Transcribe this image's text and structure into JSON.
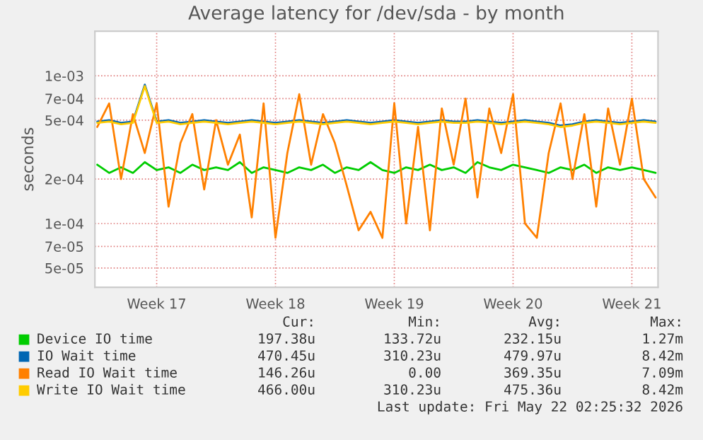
{
  "chart_data": {
    "type": "line",
    "title": "Average latency for /dev/sda - by month",
    "ylabel": "seconds",
    "categories": [
      null,
      null,
      null,
      null,
      null,
      "Week 17",
      null,
      null,
      null,
      null,
      null,
      null,
      null,
      null,
      null,
      "Week 18",
      null,
      null,
      null,
      null,
      null,
      null,
      null,
      null,
      null,
      "Week 19",
      null,
      null,
      null,
      null,
      null,
      null,
      null,
      null,
      null,
      "Week 20",
      null,
      null,
      null,
      null,
      null,
      null,
      null,
      null,
      null,
      "Week 21",
      null,
      null
    ],
    "series": [
      {
        "name": "Device IO time",
        "color": "#00cc00",
        "values": [
          0.00025,
          0.00022,
          0.00024,
          0.00022,
          0.00026,
          0.00023,
          0.00024,
          0.00022,
          0.00025,
          0.00023,
          0.00024,
          0.00023,
          0.00026,
          0.00022,
          0.00024,
          0.00023,
          0.00022,
          0.00024,
          0.00023,
          0.00025,
          0.00022,
          0.00024,
          0.00023,
          0.00026,
          0.00023,
          0.00022,
          0.00024,
          0.00023,
          0.00025,
          0.00023,
          0.00024,
          0.00022,
          0.00026,
          0.00024,
          0.00023,
          0.00025,
          0.00024,
          0.00023,
          0.00022,
          0.00024,
          0.00023,
          0.00025,
          0.00022,
          0.00024,
          0.00023,
          0.00024,
          0.00023,
          0.00022
        ]
      },
      {
        "name": "IO Wait time",
        "color": "#0066b3",
        "values": [
          0.00049,
          0.0005,
          0.00048,
          0.00049,
          0.00087,
          0.00049,
          0.0005,
          0.00048,
          0.00049,
          0.0005,
          0.00049,
          0.00048,
          0.00049,
          0.0005,
          0.00049,
          0.00048,
          0.00049,
          0.0005,
          0.00049,
          0.00048,
          0.00049,
          0.0005,
          0.00049,
          0.00048,
          0.00049,
          0.0005,
          0.00049,
          0.00048,
          0.00049,
          0.0005,
          0.00049,
          0.00049,
          0.0005,
          0.00049,
          0.00048,
          0.00049,
          0.0005,
          0.00049,
          0.00048,
          0.00046,
          0.00047,
          0.00049,
          0.0005,
          0.00049,
          0.00048,
          0.00049,
          0.0005,
          0.00049
        ]
      },
      {
        "name": "Read IO Wait time",
        "color": "#ff8000",
        "values": [
          0.00045,
          0.00065,
          0.0002,
          0.00055,
          0.0003,
          0.00065,
          0.00013,
          0.00035,
          0.00055,
          0.00017,
          0.0005,
          0.00025,
          0.0004,
          0.00011,
          0.00065,
          8e-05,
          0.0003,
          0.00075,
          0.00025,
          0.00055,
          0.00035,
          0.00018,
          9e-05,
          0.00012,
          8e-05,
          0.00065,
          0.0001,
          0.00045,
          9e-05,
          0.0006,
          0.00025,
          0.0007,
          0.00015,
          0.0006,
          0.0003,
          0.00075,
          0.0001,
          8e-05,
          0.0003,
          0.00065,
          0.0002,
          0.00055,
          0.00013,
          0.0006,
          0.00025,
          0.0007,
          0.0002,
          0.00015
        ]
      },
      {
        "name": "Write IO Wait time",
        "color": "#ffcc00",
        "values": [
          0.00048,
          0.00049,
          0.00047,
          0.00048,
          0.00085,
          0.00048,
          0.00049,
          0.00047,
          0.00048,
          0.00049,
          0.00048,
          0.00047,
          0.00048,
          0.00049,
          0.00048,
          0.00047,
          0.00048,
          0.00049,
          0.00048,
          0.00047,
          0.00048,
          0.00049,
          0.00048,
          0.00047,
          0.00048,
          0.00049,
          0.00048,
          0.00047,
          0.00048,
          0.00049,
          0.00048,
          0.00048,
          0.00049,
          0.00048,
          0.00047,
          0.00048,
          0.00049,
          0.00048,
          0.00047,
          0.00045,
          0.00046,
          0.00048,
          0.00049,
          0.00048,
          0.00047,
          0.00048,
          0.00049,
          0.00048
        ]
      }
    ],
    "log": "y",
    "ylim": [
      3.7e-05,
      0.002
    ],
    "yticks": [
      {
        "value": 5e-05,
        "label": "5e-05"
      },
      {
        "value": 7e-05,
        "label": "7e-05"
      },
      {
        "value": 0.0001,
        "label": "1e-04"
      },
      {
        "value": 0.0002,
        "label": "2e-04"
      },
      {
        "value": 0.0005,
        "label": "5e-04"
      },
      {
        "value": 0.0007,
        "label": "7e-04"
      },
      {
        "value": 0.001,
        "label": "1e-03"
      }
    ],
    "grid": true,
    "legend": "bottom",
    "line_style": "solid",
    "annotations": [
      "Cur:",
      "Min:",
      "Avg:",
      "Max:",
      "197.38u",
      "133.72u",
      "232.15u",
      "1.27m",
      "470.45u",
      "310.23u",
      "479.97u",
      "8.42m",
      "146.26u",
      "0.00",
      "369.35u",
      "7.09m",
      "466.00u",
      "310.23u",
      "475.36u",
      "8.42m",
      "Last update: Fri May 22 02:25:32 2026"
    ]
  }
}
